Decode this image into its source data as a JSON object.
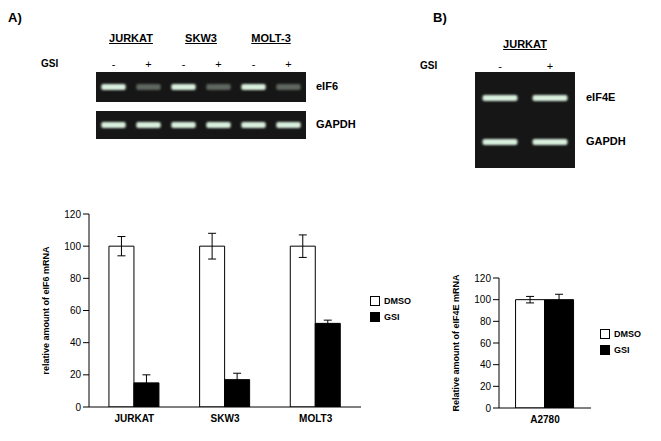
{
  "panel_labels": [
    "A)",
    "B)"
  ],
  "gels": [
    {
      "groups": [
        "JURKAT",
        "SKW3",
        "MOLT-3"
      ],
      "treatment": "GSI",
      "lanes": [
        "-",
        "+",
        "-",
        "+",
        "-",
        "+"
      ],
      "bands": [
        "eIF6",
        "GAPDH"
      ]
    },
    {
      "groups": [
        "JURKAT"
      ],
      "treatment": "GSI",
      "lanes": [
        "-",
        "+"
      ],
      "bands": [
        "eIF4E",
        "GAPDH"
      ]
    }
  ],
  "chart_data": [
    {
      "type": "bar",
      "y_label": "relative amount of eIF6 mRNA",
      "categories": [
        "JURKAT",
        "SKW3",
        "MOLT3"
      ],
      "series": [
        {
          "name": "DMSO",
          "color": "#ffffff",
          "values": [
            100,
            100,
            100
          ],
          "error": [
            6,
            8,
            7
          ]
        },
        {
          "name": "GSI",
          "color": "#000000",
          "values": [
            15,
            17,
            52
          ],
          "error": [
            5,
            4,
            2
          ]
        }
      ],
      "ylim": [
        0,
        120
      ],
      "yticks": [
        0,
        20,
        40,
        60,
        80,
        100,
        120
      ],
      "legend": "right"
    },
    {
      "type": "bar",
      "y_label": "Relative amount of eIF4E mRNA",
      "categories": [
        "A2780"
      ],
      "series": [
        {
          "name": "DMSO",
          "color": "#ffffff",
          "values": [
            100
          ],
          "error": [
            3
          ]
        },
        {
          "name": "GSI",
          "color": "#000000",
          "values": [
            100
          ],
          "error": [
            5
          ]
        }
      ],
      "ylim": [
        0,
        120
      ],
      "yticks": [
        0,
        20,
        40,
        60,
        80,
        100,
        120
      ],
      "legend": "right"
    }
  ]
}
